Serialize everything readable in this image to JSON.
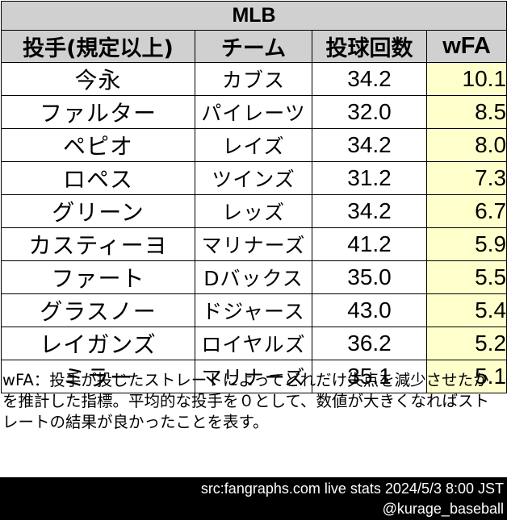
{
  "title": "MLB",
  "headers": [
    "投手(規定以上)",
    "チーム",
    "投球回数",
    "wFA"
  ],
  "rows": [
    {
      "name": "今永",
      "team": "カブス",
      "ip": "34.2",
      "wfa": "10.1"
    },
    {
      "name": "ファルター",
      "team": "パイレーツ",
      "ip": "32.0",
      "wfa": "8.5"
    },
    {
      "name": "ペピオ",
      "team": "レイズ",
      "ip": "34.2",
      "wfa": "8.0"
    },
    {
      "name": "ロペス",
      "team": "ツインズ",
      "ip": "31.2",
      "wfa": "7.3"
    },
    {
      "name": "グリーン",
      "team": "レッズ",
      "ip": "34.2",
      "wfa": "6.7"
    },
    {
      "name": "カスティーヨ",
      "team": "マリナーズ",
      "ip": "41.2",
      "wfa": "5.9"
    },
    {
      "name": "ファート",
      "team": "Dバックス",
      "ip": "35.0",
      "wfa": "5.5"
    },
    {
      "name": "グラスノー",
      "team": "ドジャース",
      "ip": "43.0",
      "wfa": "5.4"
    },
    {
      "name": "レイガンズ",
      "team": "ロイヤルズ",
      "ip": "36.2",
      "wfa": "5.2"
    },
    {
      "name": "ミラー",
      "team": "マリナーズ",
      "ip": "35.1",
      "wfa": "5.1"
    }
  ],
  "note": "wFA：投手が投じたストレートによってどれだけ失点を減少させたかを推計した指標。平均的な投手を０として、数値が大きくなればストレートの結果が良かったことを表す。",
  "footer": {
    "source": "src:fangraphs.com live stats 2024/5/3 8:00 JST",
    "credit": "@kurage_baseball"
  },
  "colors": {
    "header_bg": "#d0d0d0",
    "wfa_bg": "#ffffcc",
    "footer_bg": "#000000"
  }
}
